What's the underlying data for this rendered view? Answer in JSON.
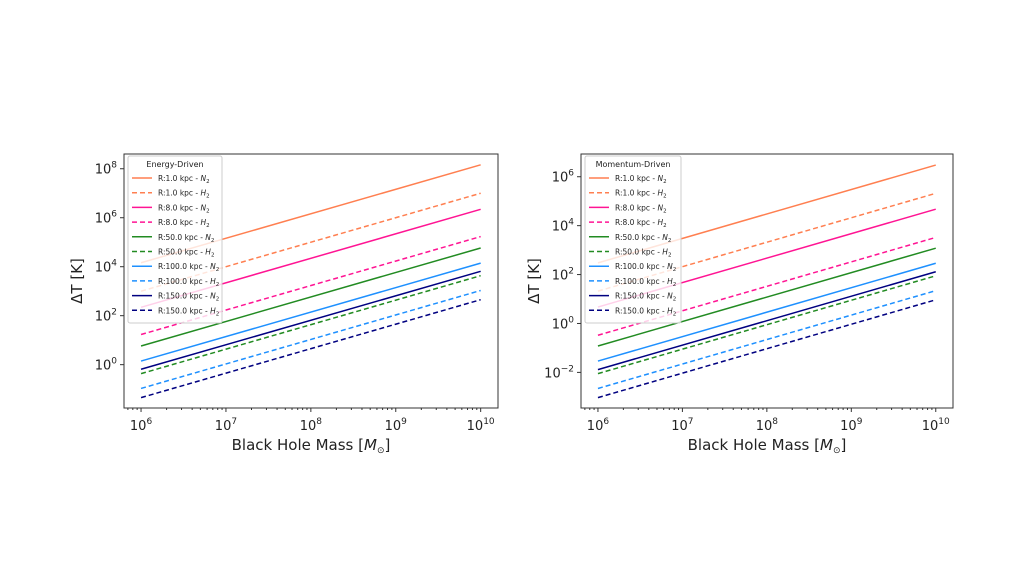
{
  "chart_data": [
    {
      "type": "line",
      "legend_title": "Energy-Driven",
      "legend_placement": "top-left",
      "xlabel": "Black Hole Mass [M⊙]",
      "ylabel": "ΔT [K]",
      "xscale": "log",
      "yscale": "log",
      "xlim": [
        630000.0,
        16000000000.0
      ],
      "ylim": [
        0.017,
        400000000.0
      ],
      "grid": false,
      "xticks": [
        "10^6",
        "10^7",
        "10^8",
        "10^9",
        "10^10"
      ],
      "yticks": [
        "10^0",
        "10^2",
        "10^4",
        "10^6",
        "10^8"
      ],
      "x": [
        1000000.0,
        10000000000.0
      ],
      "series": [
        {
          "name": "R:1.0 kpc - N2",
          "radius": "R:1.0 kpc",
          "gas": "N",
          "color": "#ff7f50",
          "dash": false,
          "values": [
            14500.0,
            145000000.0
          ]
        },
        {
          "name": "R:1.0 kpc - H2",
          "radius": "R:1.0 kpc",
          "gas": "H",
          "color": "#ff7f50",
          "dash": true,
          "values": [
            1000.0,
            10000000.0
          ]
        },
        {
          "name": "R:8.0 kpc - N2",
          "radius": "R:8.0 kpc",
          "gas": "N",
          "color": "#ff1493",
          "dash": false,
          "values": [
            220.0,
            2200000.0
          ]
        },
        {
          "name": "R:8.0 kpc - H2",
          "radius": "R:8.0 kpc",
          "gas": "H",
          "color": "#ff1493",
          "dash": true,
          "values": [
            17.0,
            170000.0
          ]
        },
        {
          "name": "R:50.0 kpc - N2",
          "radius": "R:50.0 kpc",
          "gas": "N",
          "color": "#228b22",
          "dash": false,
          "values": [
            5.8,
            58000.0
          ]
        },
        {
          "name": "R:50.0 kpc - H2",
          "radius": "R:50.0 kpc",
          "gas": "H",
          "color": "#228b22",
          "dash": true,
          "values": [
            0.43,
            4300.0
          ]
        },
        {
          "name": "R:100.0 kpc - N2",
          "radius": "R:100.0 kpc",
          "gas": "N",
          "color": "#1e90ff",
          "dash": false,
          "values": [
            1.4,
            14000.0
          ]
        },
        {
          "name": "R:100.0 kpc - H2",
          "radius": "R:100.0 kpc",
          "gas": "H",
          "color": "#1e90ff",
          "dash": true,
          "values": [
            0.107,
            1070.0
          ]
        },
        {
          "name": "R:150.0 kpc - N2",
          "radius": "R:150.0 kpc",
          "gas": "N",
          "color": "#000080",
          "dash": false,
          "values": [
            0.65,
            6500.0
          ]
        },
        {
          "name": "R:150.0 kpc - H2",
          "radius": "R:150.0 kpc",
          "gas": "H",
          "color": "#000080",
          "dash": true,
          "values": [
            0.045,
            450.0
          ]
        }
      ]
    },
    {
      "type": "line",
      "legend_title": "Momentum-Driven",
      "legend_placement": "top-left",
      "xlabel": "Black Hole Mass [M⊙]",
      "ylabel": "ΔT [K]",
      "xscale": "log",
      "yscale": "log",
      "xlim": [
        630000.0,
        16000000000.0
      ],
      "ylim": [
        0.00035,
        8500000.0
      ],
      "grid": false,
      "xticks": [
        "10^6",
        "10^7",
        "10^8",
        "10^9",
        "10^10"
      ],
      "yticks": [
        "10^-2",
        "10^0",
        "10^2",
        "10^4",
        "10^6"
      ],
      "x": [
        1000000.0,
        10000000000.0
      ],
      "series": [
        {
          "name": "R:1.0 kpc - N2",
          "radius": "R:1.0 kpc",
          "gas": "N",
          "color": "#ff7f50",
          "dash": false,
          "values": [
            300.0,
            3000000.0
          ]
        },
        {
          "name": "R:1.0 kpc - H2",
          "radius": "R:1.0 kpc",
          "gas": "H",
          "color": "#ff7f50",
          "dash": true,
          "values": [
            21,
            210000.0
          ]
        },
        {
          "name": "R:8.0 kpc - N2",
          "radius": "R:8.0 kpc",
          "gas": "N",
          "color": "#ff1493",
          "dash": false,
          "values": [
            4.7,
            47000.0
          ]
        },
        {
          "name": "R:8.0 kpc - H2",
          "radius": "R:8.0 kpc",
          "gas": "H",
          "color": "#ff1493",
          "dash": true,
          "values": [
            0.33,
            3300.0
          ]
        },
        {
          "name": "R:50.0 kpc - N2",
          "radius": "R:50.0 kpc",
          "gas": "N",
          "color": "#228b22",
          "dash": false,
          "values": [
            0.12,
            1200.0
          ]
        },
        {
          "name": "R:50.0 kpc - H2",
          "radius": "R:50.0 kpc",
          "gas": "H",
          "color": "#228b22",
          "dash": true,
          "values": [
            0.0089,
            89
          ]
        },
        {
          "name": "R:100.0 kpc - N2",
          "radius": "R:100.0 kpc",
          "gas": "N",
          "color": "#1e90ff",
          "dash": false,
          "values": [
            0.029,
            290.0
          ]
        },
        {
          "name": "R:100.0 kpc - H2",
          "radius": "R:100.0 kpc",
          "gas": "H",
          "color": "#1e90ff",
          "dash": true,
          "values": [
            0.0022,
            22
          ]
        },
        {
          "name": "R:150.0 kpc - N2",
          "radius": "R:150.0 kpc",
          "gas": "N",
          "color": "#000080",
          "dash": false,
          "values": [
            0.013,
            130.0
          ]
        },
        {
          "name": "R:150.0 kpc - H2",
          "radius": "R:150.0 kpc",
          "gas": "H",
          "color": "#000080",
          "dash": true,
          "values": [
            0.00093,
            9.3
          ]
        }
      ]
    }
  ]
}
